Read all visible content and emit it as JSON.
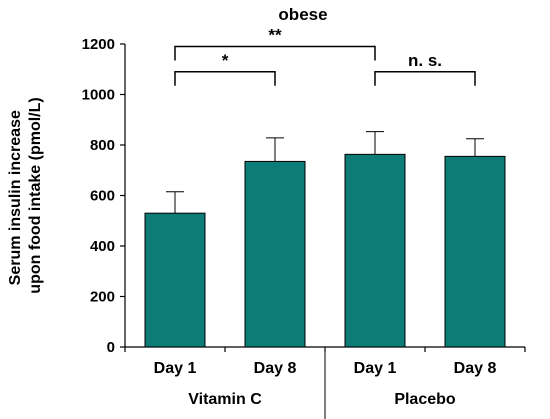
{
  "chart_data": {
    "type": "bar",
    "title": "obese",
    "ylabel_lines": [
      "Serum insulin increase",
      "upon food intake (pmol/L)"
    ],
    "ylim": [
      0,
      1200
    ],
    "yticks": [
      0,
      200,
      400,
      600,
      800,
      1000,
      1200
    ],
    "ytick_labels": [
      "0",
      "200",
      "400",
      "600",
      "800",
      "1000",
      "1200"
    ],
    "categories": [
      "Day 1",
      "Day 8",
      "Day 1",
      "Day 8"
    ],
    "groups": [
      {
        "label": "Vitamin C",
        "categories": [
          0,
          1
        ]
      },
      {
        "label": "Placebo",
        "categories": [
          2,
          3
        ]
      }
    ],
    "values": [
      530,
      735,
      763,
      755
    ],
    "errors": [
      85,
      93,
      90,
      70
    ],
    "bar_color": "#0e7c76",
    "significance": [
      {
        "label": "*",
        "from": 0,
        "to": 1,
        "height": 1090
      },
      {
        "label": "**",
        "from": 0,
        "to": 2,
        "height": 1190
      },
      {
        "label": "n. s.",
        "from": 2,
        "to": 3,
        "height": 1090
      }
    ]
  }
}
